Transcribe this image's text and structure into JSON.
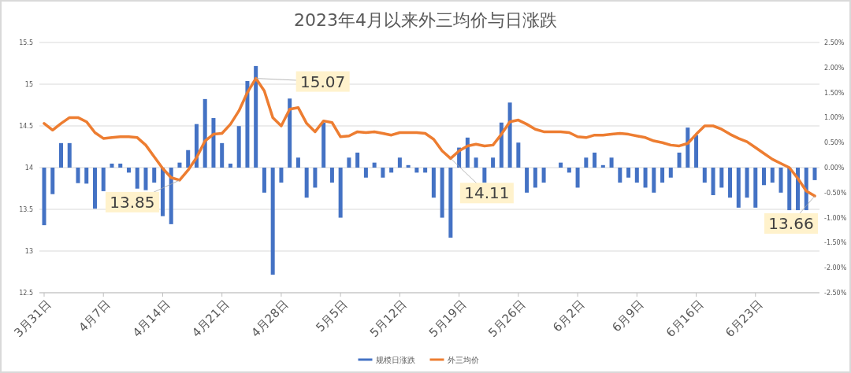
{
  "chart_data": {
    "type": "bar",
    "title": "2023年4月以来外三均价与日涨跌",
    "x": [
      "2023-03-31",
      "2023-04-01",
      "2023-04-02",
      "2023-04-03",
      "2023-04-04",
      "2023-04-05",
      "2023-04-06",
      "2023-04-07",
      "2023-04-08",
      "2023-04-09",
      "2023-04-10",
      "2023-04-11",
      "2023-04-12",
      "2023-04-13",
      "2023-04-14",
      "2023-04-15",
      "2023-04-16",
      "2023-04-17",
      "2023-04-18",
      "2023-04-19",
      "2023-04-20",
      "2023-04-21",
      "2023-04-22",
      "2023-04-23",
      "2023-04-24",
      "2023-04-25",
      "2023-04-26",
      "2023-04-27",
      "2023-04-28",
      "2023-04-29",
      "2023-04-30",
      "2023-05-01",
      "2023-05-02",
      "2023-05-03",
      "2023-05-04",
      "2023-05-05",
      "2023-05-06",
      "2023-05-07",
      "2023-05-08",
      "2023-05-09",
      "2023-05-10",
      "2023-05-11",
      "2023-05-12",
      "2023-05-13",
      "2023-05-14",
      "2023-05-15",
      "2023-05-16",
      "2023-05-17",
      "2023-05-18",
      "2023-05-19",
      "2023-05-20",
      "2023-05-21",
      "2023-05-22",
      "2023-05-23",
      "2023-05-24",
      "2023-05-25",
      "2023-05-26",
      "2023-05-27",
      "2023-05-28",
      "2023-05-29",
      "2023-05-30",
      "2023-05-31",
      "2023-06-01",
      "2023-06-02",
      "2023-06-03",
      "2023-06-04",
      "2023-06-05",
      "2023-06-06",
      "2023-06-07",
      "2023-06-08",
      "2023-06-09",
      "2023-06-10",
      "2023-06-11",
      "2023-06-12",
      "2023-06-13",
      "2023-06-14",
      "2023-06-15",
      "2023-06-16",
      "2023-06-17",
      "2023-06-18",
      "2023-06-19",
      "2023-06-20",
      "2023-06-21",
      "2023-06-22",
      "2023-06-23",
      "2023-06-24",
      "2023-06-25",
      "2023-06-26",
      "2023-06-27",
      "2023-06-28",
      "2023-06-29",
      "2023-06-30"
    ],
    "xlim": [
      "2023-03-31",
      "2023-06-30"
    ],
    "xticks": [
      {
        "value": "2023-03-31",
        "label": "3月31日"
      },
      {
        "value": "2023-04-07",
        "label": "4月7日"
      },
      {
        "value": "2023-04-14",
        "label": "4月14日"
      },
      {
        "value": "2023-04-21",
        "label": "4月21日"
      },
      {
        "value": "2023-04-28",
        "label": "4月28日"
      },
      {
        "value": "2023-05-05",
        "label": "5月5日"
      },
      {
        "value": "2023-05-12",
        "label": "5月12日"
      },
      {
        "value": "2023-05-19",
        "label": "5月19日"
      },
      {
        "value": "2023-05-26",
        "label": "5月26日"
      },
      {
        "value": "2023-06-02",
        "label": "6月2日"
      },
      {
        "value": "2023-06-09",
        "label": "6月9日"
      },
      {
        "value": "2023-06-16",
        "label": "6月16日"
      },
      {
        "value": "2023-06-23",
        "label": "6月23日"
      }
    ],
    "ylim": [
      12.5,
      15.5
    ],
    "yticks": [
      12.5,
      13,
      13.5,
      14,
      14.5,
      15,
      15.5
    ],
    "y2lim": [
      -2.5,
      2.5
    ],
    "y2ticks": [
      {
        "value": -2.5,
        "label": "-2.50%"
      },
      {
        "value": -2,
        "label": "-2.00%"
      },
      {
        "value": -1.5,
        "label": "-1.50%"
      },
      {
        "value": -1,
        "label": "-1.00%"
      },
      {
        "value": -0.5,
        "label": "-0.50%"
      },
      {
        "value": 0,
        "label": "0.00%"
      },
      {
        "value": 0.5,
        "label": "0.50%"
      },
      {
        "value": 1,
        "label": "1.00%"
      },
      {
        "value": 1.5,
        "label": "1.50%"
      },
      {
        "value": 2,
        "label": "2.00%"
      },
      {
        "value": 2.5,
        "label": "2.50%"
      }
    ],
    "series": [
      {
        "name": "规模日涨跌",
        "axis": "y2",
        "color": "#4472c4",
        "values": [
          -1.15,
          -0.53,
          0.49,
          0.49,
          -0.31,
          -0.32,
          -0.82,
          -0.47,
          0.08,
          0.08,
          -0.1,
          -0.42,
          -0.45,
          -0.3,
          -0.97,
          -1.13,
          0.1,
          0.35,
          0.87,
          1.37,
          0.99,
          0.49,
          0.08,
          0.83,
          1.73,
          2.03,
          -0.5,
          -2.14,
          -0.3,
          1.38,
          0.2,
          -0.6,
          -0.4,
          0.9,
          -0.3,
          -1.0,
          0.2,
          0.3,
          -0.2,
          0.1,
          -0.2,
          -0.1,
          0.2,
          0.05,
          -0.1,
          -0.1,
          -0.6,
          -1.0,
          -1.4,
          0.4,
          0.6,
          0.2,
          -0.3,
          0.2,
          0.9,
          1.3,
          0.5,
          -0.5,
          -0.4,
          -0.3,
          0.0,
          0.1,
          -0.1,
          -0.4,
          0.2,
          0.3,
          0.05,
          0.2,
          -0.3,
          -0.2,
          -0.3,
          -0.4,
          -0.5,
          -0.3,
          -0.2,
          0.3,
          0.8,
          0.65,
          -0.3,
          -0.55,
          -0.4,
          -0.6,
          -0.8,
          -0.6,
          -0.8,
          -0.35,
          -0.3,
          -0.5,
          -0.85,
          -0.85,
          -0.85,
          -0.25
        ]
      },
      {
        "name": "外三均价",
        "type": "line",
        "color": "#ed7d31",
        "values": [
          14.53,
          14.45,
          14.53,
          14.6,
          14.6,
          14.55,
          14.42,
          14.35,
          14.36,
          14.37,
          14.37,
          14.36,
          14.27,
          14.13,
          13.99,
          13.88,
          13.85,
          13.97,
          14.12,
          14.32,
          14.4,
          14.41,
          14.52,
          14.68,
          14.9,
          15.07,
          14.92,
          14.6,
          14.5,
          14.7,
          14.72,
          14.53,
          14.43,
          14.56,
          14.54,
          14.37,
          14.38,
          14.43,
          14.42,
          14.43,
          14.41,
          14.39,
          14.42,
          14.42,
          14.42,
          14.41,
          14.34,
          14.2,
          14.11,
          14.2,
          14.26,
          14.28,
          14.26,
          14.27,
          14.4,
          14.55,
          14.57,
          14.52,
          14.46,
          14.43,
          14.43,
          14.43,
          14.42,
          14.37,
          14.36,
          14.39,
          14.39,
          14.4,
          14.41,
          14.4,
          14.38,
          14.36,
          14.32,
          14.3,
          14.27,
          14.26,
          14.29,
          14.4,
          14.5,
          14.5,
          14.46,
          14.4,
          14.35,
          14.31,
          14.24,
          14.17,
          14.1,
          14.05,
          14.0,
          13.87,
          13.72,
          13.66
        ]
      }
    ],
    "annotations": [
      {
        "text": "15.07",
        "x": "2023-04-25",
        "y": 15.07
      },
      {
        "text": "13.85",
        "x": "2023-04-16",
        "y": 13.85
      },
      {
        "text": "14.11",
        "x": "2023-05-18",
        "y": 14.11
      },
      {
        "text": "13.66",
        "x": "2023-06-30",
        "y": 13.66
      }
    ],
    "grid": "y",
    "legend": "bottom"
  }
}
